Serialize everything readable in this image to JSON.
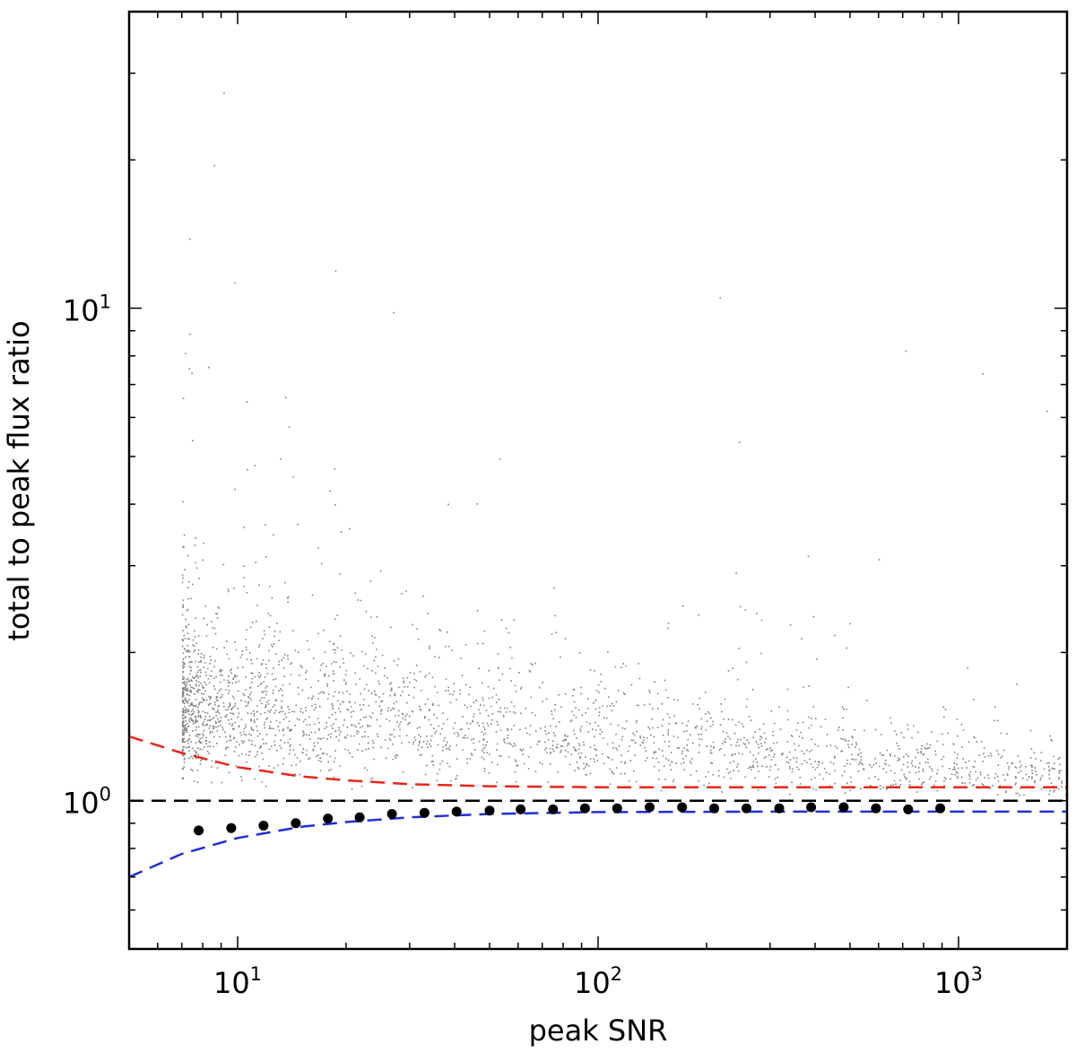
{
  "chart_data": {
    "type": "scatter",
    "xlabel": "peak SNR",
    "ylabel": "total to peak flux ratio",
    "xscale": "log",
    "yscale": "log",
    "xlim": [
      5,
      2000
    ],
    "ylim": [
      0.5,
      40
    ],
    "grid": false,
    "x_tick_labels": [
      {
        "base": "10",
        "exp": "1",
        "value": 10
      },
      {
        "base": "10",
        "exp": "2",
        "value": 100
      },
      {
        "base": "10",
        "exp": "3",
        "value": 1000
      }
    ],
    "y_tick_labels": [
      {
        "base": "10",
        "exp": "0",
        "value": 1
      },
      {
        "base": "10",
        "exp": "1",
        "value": 10
      }
    ],
    "scatter_cloud": {
      "color": "#808080",
      "x_min": 7,
      "dense_ratio_range_at_snr_7": [
        0.8,
        3.0
      ],
      "dense_ratio_range_at_snr_100": [
        0.95,
        1.5
      ],
      "dense_ratio_range_at_snr_1000": [
        0.98,
        1.2
      ],
      "max_ratio": 30
    },
    "series": [
      {
        "style": "dots",
        "color": "#000000",
        "points": [
          {
            "x": 7.8,
            "y": 0.87
          },
          {
            "x": 9.6,
            "y": 0.88
          },
          {
            "x": 11.8,
            "y": 0.89
          },
          {
            "x": 14.5,
            "y": 0.9
          },
          {
            "x": 17.8,
            "y": 0.92
          },
          {
            "x": 21.8,
            "y": 0.925
          },
          {
            "x": 26.8,
            "y": 0.94
          },
          {
            "x": 33,
            "y": 0.945
          },
          {
            "x": 40.5,
            "y": 0.95
          },
          {
            "x": 50,
            "y": 0.955
          },
          {
            "x": 61,
            "y": 0.96
          },
          {
            "x": 75,
            "y": 0.96
          },
          {
            "x": 92,
            "y": 0.965
          },
          {
            "x": 113,
            "y": 0.965
          },
          {
            "x": 139,
            "y": 0.97
          },
          {
            "x": 171,
            "y": 0.97
          },
          {
            "x": 210,
            "y": 0.965
          },
          {
            "x": 258,
            "y": 0.965
          },
          {
            "x": 318,
            "y": 0.965
          },
          {
            "x": 390,
            "y": 0.97
          },
          {
            "x": 480,
            "y": 0.97
          },
          {
            "x": 590,
            "y": 0.965
          },
          {
            "x": 725,
            "y": 0.96
          },
          {
            "x": 890,
            "y": 0.965
          }
        ]
      },
      {
        "style": "dashed-line",
        "color": "#e8261a",
        "points": [
          {
            "x": 5,
            "y": 1.35
          },
          {
            "x": 7,
            "y": 1.25
          },
          {
            "x": 10,
            "y": 1.17
          },
          {
            "x": 15,
            "y": 1.12
          },
          {
            "x": 20,
            "y": 1.1
          },
          {
            "x": 30,
            "y": 1.08
          },
          {
            "x": 50,
            "y": 1.07
          },
          {
            "x": 100,
            "y": 1.065
          },
          {
            "x": 300,
            "y": 1.065
          },
          {
            "x": 2000,
            "y": 1.065
          }
        ]
      },
      {
        "style": "dashed-line",
        "color": "#000000",
        "points": [
          {
            "x": 5,
            "y": 1.0
          },
          {
            "x": 2000,
            "y": 1.0
          }
        ]
      },
      {
        "style": "dashed-line",
        "color": "#1f2fd6",
        "points": [
          {
            "x": 5,
            "y": 0.7
          },
          {
            "x": 7,
            "y": 0.78
          },
          {
            "x": 10,
            "y": 0.84
          },
          {
            "x": 15,
            "y": 0.885
          },
          {
            "x": 20,
            "y": 0.905
          },
          {
            "x": 30,
            "y": 0.925
          },
          {
            "x": 50,
            "y": 0.94
          },
          {
            "x": 100,
            "y": 0.948
          },
          {
            "x": 300,
            "y": 0.95
          },
          {
            "x": 2000,
            "y": 0.95
          }
        ]
      }
    ]
  }
}
